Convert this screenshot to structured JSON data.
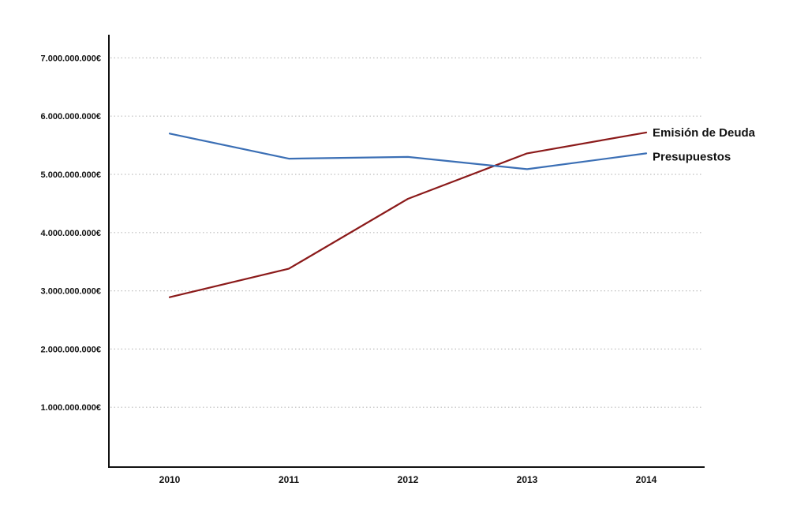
{
  "chart_data": {
    "type": "line",
    "title": "",
    "xlabel": "",
    "ylabel": "",
    "categories": [
      "2010",
      "2011",
      "2012",
      "2013",
      "2014"
    ],
    "ylim": [
      0,
      7000000000
    ],
    "y_ticks": [
      1000000000,
      2000000000,
      3000000000,
      4000000000,
      5000000000,
      6000000000,
      7000000000
    ],
    "y_tick_labels": [
      "1.000.000.000€",
      "2.000.000.000€",
      "3.000.000.000€",
      "4.000.000.000€",
      "5.000.000.000€",
      "6.000.000.000€",
      "7.000.000.000€"
    ],
    "grid": true,
    "legend": "inline-right",
    "series": [
      {
        "name": "Emisión de Deuda",
        "color": "#8b1a1a",
        "values": [
          2890000000,
          3380000000,
          4580000000,
          5360000000,
          5720000000
        ]
      },
      {
        "name": "Presupuestos",
        "color": "#3b6fb5",
        "values": [
          5700000000,
          5270000000,
          5300000000,
          5090000000,
          5360000000
        ]
      }
    ]
  }
}
